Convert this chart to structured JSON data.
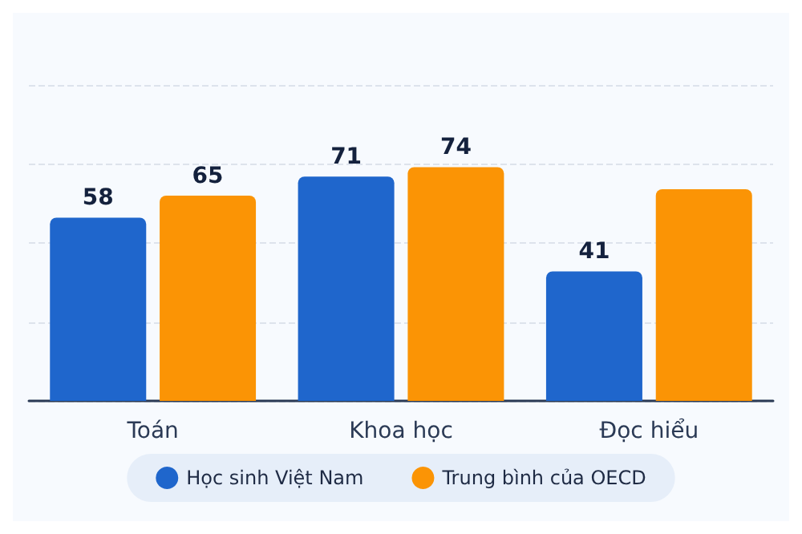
{
  "chart_data": {
    "type": "bar",
    "categories": [
      "Toán",
      "Khoa học",
      "Đọc hiểu"
    ],
    "series": [
      {
        "name": "Học sinh Việt Nam",
        "color": "#1f66cc",
        "values": [
          58,
          71,
          41
        ],
        "value_labels": [
          "58",
          "71",
          "41"
        ]
      },
      {
        "name": "Trung bình của OECD",
        "color": "#fb9405",
        "values": [
          65,
          74,
          67
        ],
        "value_labels": [
          "65",
          "74",
          null
        ]
      }
    ],
    "ylim": [
      0,
      100
    ],
    "yticks": [
      {
        "value": 0,
        "label": null
      },
      {
        "value": 25,
        "label": null
      },
      {
        "value": 50,
        "label": null
      },
      {
        "value": 75,
        "label": null
      },
      {
        "value": 100,
        "label": null
      }
    ],
    "grid": "y",
    "legend": "bottom",
    "tick_labels": "x"
  }
}
